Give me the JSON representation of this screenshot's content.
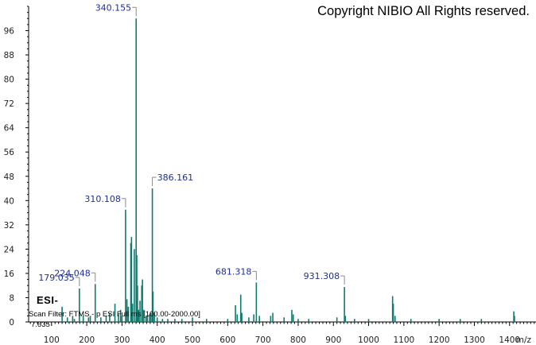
{
  "chart_data": {
    "type": "bar",
    "title": "",
    "xlabel": "m/z",
    "ylabel": "",
    "xlim": [
      35,
      1475
    ],
    "ylim": [
      0,
      104
    ],
    "xticks": [
      100,
      200,
      300,
      400,
      500,
      600,
      700,
      800,
      900,
      1000,
      1100,
      1200,
      1300,
      1400
    ],
    "yticks": [
      0,
      8,
      16,
      24,
      32,
      40,
      48,
      56,
      64,
      72,
      80,
      88,
      96
    ],
    "grid": false,
    "bar_color": "#117a6e",
    "label_color": "#1f2f8f",
    "peak_labels": [
      {
        "text": "340.155",
        "x": 340.155,
        "y": 100
      },
      {
        "text": "386.161",
        "x": 386.161,
        "y": 44
      },
      {
        "text": "310.108",
        "x": 310.108,
        "y": 37
      },
      {
        "text": "224.048",
        "x": 224.048,
        "y": 12.5
      },
      {
        "text": "179.035",
        "x": 179.035,
        "y": 11
      },
      {
        "text": "681.318",
        "x": 681.318,
        "y": 13
      },
      {
        "text": "931.308",
        "x": 931.308,
        "y": 11.5
      }
    ],
    "peaks": [
      {
        "x": 130,
        "y": 5
      },
      {
        "x": 145,
        "y": 1.5
      },
      {
        "x": 160,
        "y": 2
      },
      {
        "x": 165,
        "y": 1
      },
      {
        "x": 179.035,
        "y": 11
      },
      {
        "x": 190,
        "y": 2
      },
      {
        "x": 205,
        "y": 1.5
      },
      {
        "x": 210,
        "y": 2
      },
      {
        "x": 224.048,
        "y": 12.5
      },
      {
        "x": 240,
        "y": 1.5
      },
      {
        "x": 255,
        "y": 2
      },
      {
        "x": 265,
        "y": 3
      },
      {
        "x": 280,
        "y": 6
      },
      {
        "x": 290,
        "y": 2.5
      },
      {
        "x": 296,
        "y": 4
      },
      {
        "x": 300,
        "y": 2
      },
      {
        "x": 310.108,
        "y": 37
      },
      {
        "x": 314,
        "y": 7.5
      },
      {
        "x": 318,
        "y": 5
      },
      {
        "x": 325,
        "y": 26
      },
      {
        "x": 327,
        "y": 28
      },
      {
        "x": 330,
        "y": 6
      },
      {
        "x": 335,
        "y": 24
      },
      {
        "x": 340.155,
        "y": 100
      },
      {
        "x": 342,
        "y": 22
      },
      {
        "x": 344,
        "y": 12
      },
      {
        "x": 347,
        "y": 4
      },
      {
        "x": 351,
        "y": 7
      },
      {
        "x": 356,
        "y": 12
      },
      {
        "x": 358,
        "y": 14
      },
      {
        "x": 362,
        "y": 4
      },
      {
        "x": 368,
        "y": 2
      },
      {
        "x": 372,
        "y": 2
      },
      {
        "x": 378,
        "y": 2.5
      },
      {
        "x": 382,
        "y": 3
      },
      {
        "x": 386.161,
        "y": 44
      },
      {
        "x": 388,
        "y": 10
      },
      {
        "x": 392,
        "y": 3
      },
      {
        "x": 400,
        "y": 1.5
      },
      {
        "x": 415,
        "y": 1
      },
      {
        "x": 430,
        "y": 1
      },
      {
        "x": 450,
        "y": 1
      },
      {
        "x": 470,
        "y": 1
      },
      {
        "x": 500,
        "y": 1.5
      },
      {
        "x": 540,
        "y": 1
      },
      {
        "x": 600,
        "y": 1
      },
      {
        "x": 622,
        "y": 5.5
      },
      {
        "x": 627,
        "y": 2.5
      },
      {
        "x": 637,
        "y": 9
      },
      {
        "x": 640,
        "y": 3
      },
      {
        "x": 660,
        "y": 1.5
      },
      {
        "x": 674,
        "y": 2.5
      },
      {
        "x": 681.318,
        "y": 13
      },
      {
        "x": 690,
        "y": 2
      },
      {
        "x": 722,
        "y": 2
      },
      {
        "x": 728,
        "y": 3
      },
      {
        "x": 760,
        "y": 1.5
      },
      {
        "x": 782,
        "y": 4
      },
      {
        "x": 786,
        "y": 2.5
      },
      {
        "x": 800,
        "y": 1
      },
      {
        "x": 830,
        "y": 1
      },
      {
        "x": 910,
        "y": 1.5
      },
      {
        "x": 931.308,
        "y": 11.5
      },
      {
        "x": 934,
        "y": 2
      },
      {
        "x": 960,
        "y": 1
      },
      {
        "x": 1000,
        "y": 1
      },
      {
        "x": 1068,
        "y": 8.5
      },
      {
        "x": 1070,
        "y": 6
      },
      {
        "x": 1075,
        "y": 2
      },
      {
        "x": 1120,
        "y": 1
      },
      {
        "x": 1200,
        "y": 1
      },
      {
        "x": 1260,
        "y": 1
      },
      {
        "x": 1320,
        "y": 1
      },
      {
        "x": 1412,
        "y": 3.5
      },
      {
        "x": 1414,
        "y": 2
      }
    ]
  },
  "copyright": "Copyright NIBIO All Rights reserved.",
  "ion_mode": "ESI-",
  "scan_filter": "Scan Filter: FTMS - p ESI Full ms [100.00-2000.00]",
  "base_value": "7.635"
}
